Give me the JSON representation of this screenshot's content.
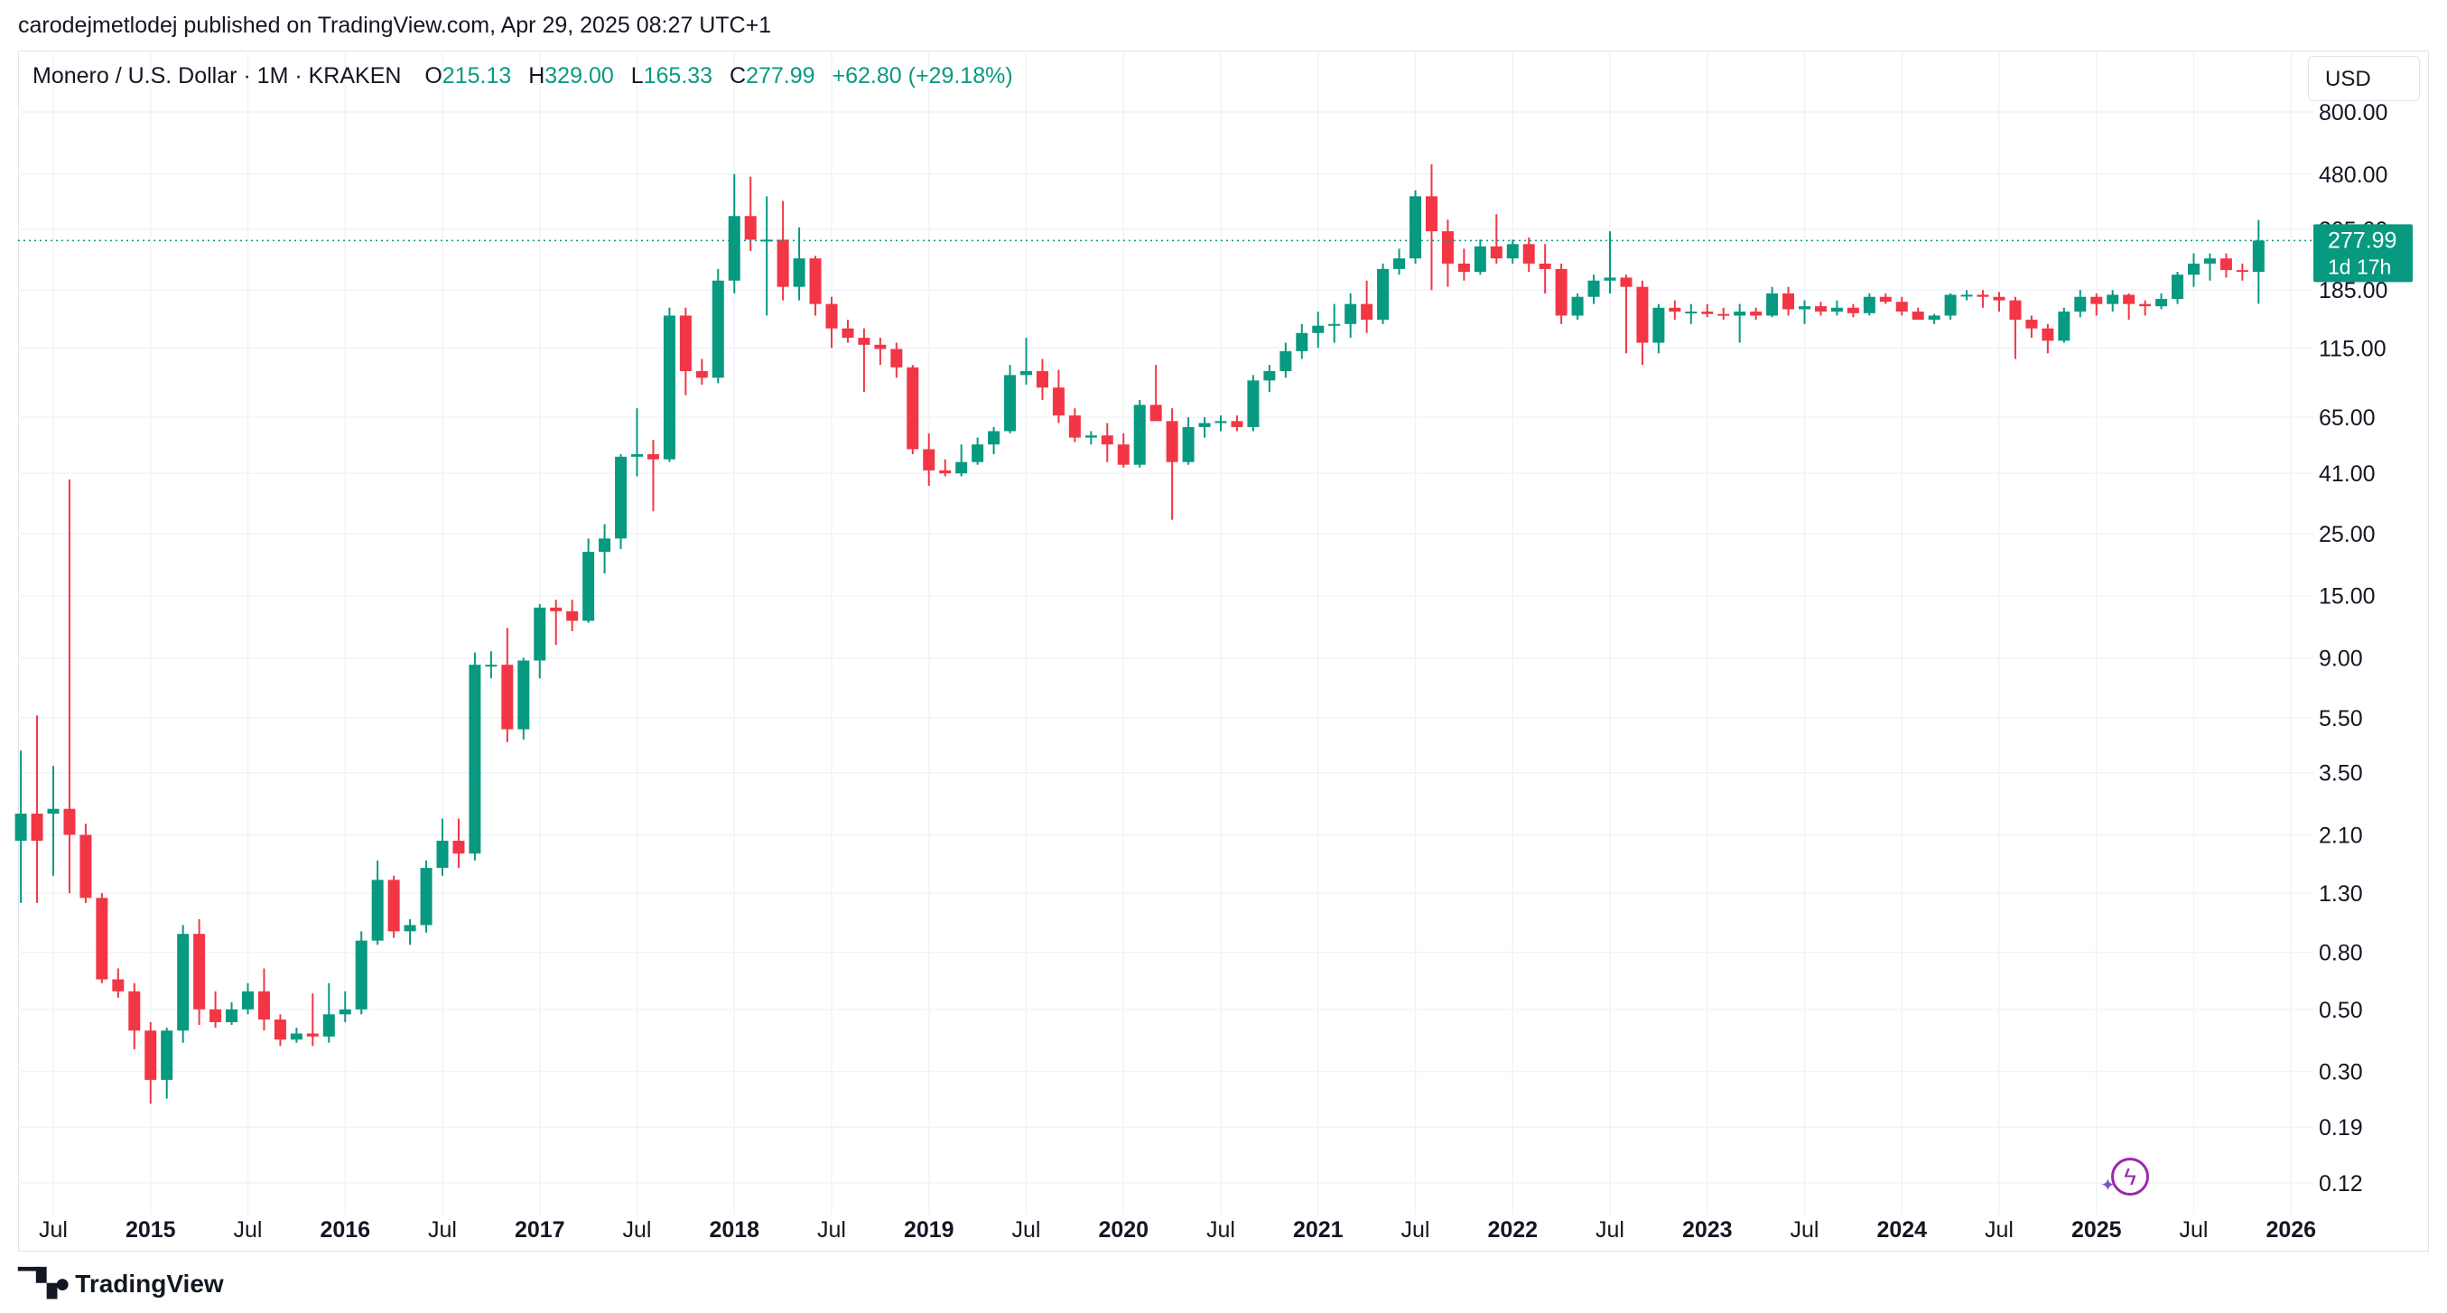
{
  "header": {
    "published": "carodejmetlodej published on TradingView.com, Apr 29, 2025 08:27 UTC+1"
  },
  "legend": {
    "symbol": "Monero / U.S. Dollar · 1M · KRAKEN",
    "open_label": "O",
    "open": "215.13",
    "high_label": "H",
    "high": "329.00",
    "low_label": "L",
    "low": "165.33",
    "close_label": "C",
    "close": "277.99",
    "change": "+62.80 (+29.18%)"
  },
  "currency_button": "USD",
  "price_badge": {
    "price": "277.99",
    "countdown": "1d 17h"
  },
  "footer": {
    "brand": "TradingView"
  },
  "colors": {
    "up": "#089981",
    "down": "#f23645",
    "grid": "#f0f3fa",
    "text": "#131722",
    "badge": "#089981"
  },
  "chart_data": {
    "type": "candlestick",
    "scale": "log",
    "ylim": [
      0.1,
      800
    ],
    "yticks": [
      800,
      480,
      305,
      185,
      115,
      65,
      41,
      25,
      15,
      9,
      5.5,
      3.5,
      2.1,
      1.3,
      0.8,
      0.5,
      0.3,
      0.19,
      0.12
    ],
    "ytick_labels": [
      "800.00",
      "480.00",
      "305.00",
      "185.00",
      "115.00",
      "65.00",
      "41.00",
      "25.00",
      "15.00",
      "9.00",
      "5.50",
      "3.50",
      "2.10",
      "1.30",
      "0.80",
      "0.50",
      "0.30",
      "0.19",
      "0.12"
    ],
    "xticks": [
      {
        "t": 2014.5,
        "label": "Jul",
        "bold": false
      },
      {
        "t": 2015.0,
        "label": "2015",
        "bold": true
      },
      {
        "t": 2015.5,
        "label": "Jul",
        "bold": false
      },
      {
        "t": 2016.0,
        "label": "2016",
        "bold": true
      },
      {
        "t": 2016.5,
        "label": "Jul",
        "bold": false
      },
      {
        "t": 2017.0,
        "label": "2017",
        "bold": true
      },
      {
        "t": 2017.5,
        "label": "Jul",
        "bold": false
      },
      {
        "t": 2018.0,
        "label": "2018",
        "bold": true
      },
      {
        "t": 2018.5,
        "label": "Jul",
        "bold": false
      },
      {
        "t": 2019.0,
        "label": "2019",
        "bold": true
      },
      {
        "t": 2019.5,
        "label": "Jul",
        "bold": false
      },
      {
        "t": 2020.0,
        "label": "2020",
        "bold": true
      },
      {
        "t": 2020.5,
        "label": "Jul",
        "bold": false
      },
      {
        "t": 2021.0,
        "label": "2021",
        "bold": true
      },
      {
        "t": 2021.5,
        "label": "Jul",
        "bold": false
      },
      {
        "t": 2022.0,
        "label": "2022",
        "bold": true
      },
      {
        "t": 2022.5,
        "label": "Jul",
        "bold": false
      },
      {
        "t": 2023.0,
        "label": "2023",
        "bold": true
      },
      {
        "t": 2023.5,
        "label": "Jul",
        "bold": false
      },
      {
        "t": 2024.0,
        "label": "2024",
        "bold": true
      },
      {
        "t": 2024.5,
        "label": "Jul",
        "bold": false
      },
      {
        "t": 2025.0,
        "label": "2025",
        "bold": true
      },
      {
        "t": 2025.5,
        "label": "Jul",
        "bold": false
      },
      {
        "t": 2026.0,
        "label": "2026",
        "bold": true
      }
    ],
    "first_candle": "2014-05",
    "current_price": 277.99,
    "candles": [
      [
        2.0,
        4.2,
        1.2,
        2.5
      ],
      [
        2.5,
        5.6,
        1.2,
        2.0
      ],
      [
        2.5,
        3.7,
        1.5,
        2.6
      ],
      [
        2.6,
        39.0,
        1.3,
        2.1
      ],
      [
        2.1,
        2.3,
        1.2,
        1.25
      ],
      [
        1.25,
        1.3,
        0.62,
        0.64
      ],
      [
        0.64,
        0.7,
        0.55,
        0.58
      ],
      [
        0.58,
        0.62,
        0.36,
        0.42
      ],
      [
        0.42,
        0.45,
        0.23,
        0.28
      ],
      [
        0.28,
        0.43,
        0.24,
        0.42
      ],
      [
        0.42,
        1.0,
        0.38,
        0.93
      ],
      [
        0.93,
        1.05,
        0.44,
        0.5
      ],
      [
        0.5,
        0.58,
        0.43,
        0.45
      ],
      [
        0.45,
        0.53,
        0.44,
        0.5
      ],
      [
        0.5,
        0.62,
        0.48,
        0.58
      ],
      [
        0.58,
        0.7,
        0.42,
        0.46
      ],
      [
        0.46,
        0.48,
        0.37,
        0.39
      ],
      [
        0.39,
        0.43,
        0.38,
        0.41
      ],
      [
        0.41,
        0.57,
        0.37,
        0.4
      ],
      [
        0.4,
        0.62,
        0.38,
        0.48
      ],
      [
        0.48,
        0.58,
        0.45,
        0.5
      ],
      [
        0.5,
        0.95,
        0.48,
        0.88
      ],
      [
        0.88,
        1.7,
        0.85,
        1.45
      ],
      [
        1.45,
        1.5,
        0.9,
        0.95
      ],
      [
        0.95,
        1.05,
        0.85,
        1.0
      ],
      [
        1.0,
        1.7,
        0.94,
        1.6
      ],
      [
        1.6,
        2.4,
        1.5,
        2.0
      ],
      [
        2.0,
        2.4,
        1.6,
        1.8
      ],
      [
        1.8,
        9.4,
        1.7,
        8.5
      ],
      [
        8.5,
        9.5,
        7.6,
        8.5
      ],
      [
        8.5,
        11.5,
        4.5,
        5.0
      ],
      [
        5.0,
        9.0,
        4.6,
        8.8
      ],
      [
        8.8,
        14.0,
        7.6,
        13.6
      ],
      [
        13.6,
        14.5,
        10.0,
        13.2
      ],
      [
        13.2,
        14.5,
        11.2,
        12.2
      ],
      [
        12.2,
        24.0,
        12.0,
        21.5
      ],
      [
        21.5,
        27.0,
        18.0,
        24.0
      ],
      [
        24.0,
        48.0,
        22.0,
        47.0
      ],
      [
        47.0,
        70.0,
        40.0,
        48.0
      ],
      [
        48.0,
        54.0,
        30.0,
        46.0
      ],
      [
        46.0,
        160.0,
        45.0,
        150.0
      ],
      [
        150.0,
        160.0,
        78.0,
        95.0
      ],
      [
        95.0,
        105.0,
        85.0,
        90.0
      ],
      [
        90.0,
        220.0,
        86.0,
        200.0
      ],
      [
        200.0,
        480.0,
        180.0,
        340.0
      ],
      [
        340.0,
        470.0,
        255.0,
        280.0
      ],
      [
        280.0,
        400.0,
        150.0,
        280.0
      ],
      [
        280.0,
        385.0,
        170.0,
        190.0
      ],
      [
        190.0,
        310.0,
        170.0,
        240.0
      ],
      [
        240.0,
        245.0,
        150.0,
        165.0
      ],
      [
        165.0,
        175.0,
        115.0,
        135.0
      ],
      [
        135.0,
        145.0,
        120.0,
        125.0
      ],
      [
        125.0,
        135.0,
        80.0,
        118.0
      ],
      [
        118.0,
        125.0,
        100.0,
        114.0
      ],
      [
        114.0,
        120.0,
        90.0,
        98.0
      ],
      [
        98.0,
        100.0,
        48.0,
        50.0
      ],
      [
        50.0,
        57.0,
        37.0,
        42.0
      ],
      [
        42.0,
        46.0,
        40.0,
        41.0
      ],
      [
        41.0,
        52.0,
        40.0,
        45.0
      ],
      [
        45.0,
        55.0,
        44.0,
        52.0
      ],
      [
        52.0,
        60.0,
        48.0,
        58.0
      ],
      [
        58.0,
        100.0,
        57.0,
        92.0
      ],
      [
        92.0,
        125.0,
        85.0,
        95.0
      ],
      [
        95.0,
        105.0,
        75.0,
        83.0
      ],
      [
        83.0,
        96.0,
        62.0,
        66.0
      ],
      [
        66.0,
        70.0,
        53.0,
        55.0
      ],
      [
        55.0,
        58.0,
        52.0,
        56.0
      ],
      [
        56.0,
        62.0,
        45.0,
        52.0
      ],
      [
        52.0,
        57.0,
        43.0,
        44.0
      ],
      [
        44.0,
        75.0,
        43.0,
        72.0
      ],
      [
        72.0,
        100.0,
        68.0,
        63.0
      ],
      [
        63.0,
        70.0,
        28.0,
        45.0
      ],
      [
        45.0,
        65.0,
        44.0,
        60.0
      ],
      [
        60.0,
        65.0,
        55.0,
        62.0
      ],
      [
        62.0,
        66.0,
        58.0,
        63.0
      ],
      [
        63.0,
        66.0,
        58.0,
        60.0
      ],
      [
        60.0,
        92.0,
        58.0,
        88.0
      ],
      [
        88.0,
        100.0,
        80.0,
        95.0
      ],
      [
        95.0,
        120.0,
        90.0,
        112.0
      ],
      [
        112.0,
        140.0,
        105.0,
        130.0
      ],
      [
        130.0,
        155.0,
        115.0,
        138.0
      ],
      [
        138.0,
        165.0,
        120.0,
        140.0
      ],
      [
        140.0,
        180.0,
        125.0,
        165.0
      ],
      [
        165.0,
        200.0,
        130.0,
        145.0
      ],
      [
        145.0,
        230.0,
        140.0,
        220.0
      ],
      [
        220.0,
        260.0,
        210.0,
        240.0
      ],
      [
        240.0,
        420.0,
        230.0,
        400.0
      ],
      [
        400.0,
        520.0,
        185.0,
        300.0
      ],
      [
        300.0,
        330.0,
        190.0,
        230.0
      ],
      [
        230.0,
        260.0,
        200.0,
        215.0
      ],
      [
        215.0,
        280.0,
        210.0,
        265.0
      ],
      [
        265.0,
        345.0,
        230.0,
        240.0
      ],
      [
        240.0,
        280.0,
        230.0,
        270.0
      ],
      [
        270.0,
        285.0,
        215.0,
        230.0
      ],
      [
        230.0,
        270.0,
        180.0,
        220.0
      ],
      [
        220.0,
        230.0,
        140.0,
        150.0
      ],
      [
        150.0,
        180.0,
        145.0,
        175.0
      ],
      [
        175.0,
        210.0,
        165.0,
        200.0
      ],
      [
        200.0,
        300.0,
        180.0,
        205.0
      ],
      [
        205.0,
        210.0,
        110.0,
        190.0
      ],
      [
        190.0,
        200.0,
        100.0,
        120.0
      ],
      [
        120.0,
        165.0,
        110.0,
        160.0
      ],
      [
        160.0,
        170.0,
        145.0,
        155.0
      ],
      [
        155.0,
        165.0,
        140.0,
        155.0
      ],
      [
        155.0,
        165.0,
        148.0,
        152.0
      ],
      [
        152.0,
        160.0,
        145.0,
        150.0
      ],
      [
        150.0,
        165.0,
        120.0,
        155.0
      ],
      [
        155.0,
        160.0,
        145.0,
        150.0
      ],
      [
        150.0,
        190.0,
        148.0,
        180.0
      ],
      [
        180.0,
        190.0,
        150.0,
        158.0
      ],
      [
        158.0,
        170.0,
        140.0,
        162.0
      ],
      [
        162.0,
        168.0,
        150.0,
        155.0
      ],
      [
        155.0,
        170.0,
        150.0,
        160.0
      ],
      [
        160.0,
        165.0,
        148.0,
        153.0
      ],
      [
        153.0,
        180.0,
        150.0,
        175.0
      ],
      [
        175.0,
        180.0,
        165.0,
        168.0
      ],
      [
        168.0,
        175.0,
        150.0,
        155.0
      ],
      [
        155.0,
        160.0,
        145.0,
        145.0
      ],
      [
        145.0,
        152.0,
        140.0,
        150.0
      ],
      [
        150.0,
        180.0,
        145.0,
        178.0
      ],
      [
        178.0,
        185.0,
        170.0,
        178.0
      ],
      [
        178.0,
        185.0,
        160.0,
        175.0
      ],
      [
        175.0,
        182.0,
        155.0,
        170.0
      ],
      [
        170.0,
        175.0,
        105.0,
        145.0
      ],
      [
        145.0,
        150.0,
        125.0,
        135.0
      ],
      [
        135.0,
        140.0,
        110.0,
        122.0
      ],
      [
        122.0,
        160.0,
        120.0,
        155.0
      ],
      [
        155.0,
        185.0,
        148.0,
        175.0
      ],
      [
        175.0,
        180.0,
        150.0,
        165.0
      ],
      [
        165.0,
        185.0,
        155.0,
        178.0
      ],
      [
        178.0,
        180.0,
        145.0,
        165.0
      ],
      [
        165.0,
        170.0,
        150.0,
        162.0
      ],
      [
        162.0,
        180.0,
        158.0,
        172.0
      ],
      [
        172.0,
        215.0,
        165.0,
        210.0
      ],
      [
        210.0,
        250.0,
        190.0,
        230.0
      ],
      [
        230.0,
        250.0,
        200.0,
        240.0
      ],
      [
        240.0,
        250.0,
        205.0,
        218.0
      ],
      [
        218.0,
        230.0,
        200.0,
        215.0
      ],
      [
        215.0,
        329.0,
        165.33,
        277.99
      ]
    ]
  }
}
